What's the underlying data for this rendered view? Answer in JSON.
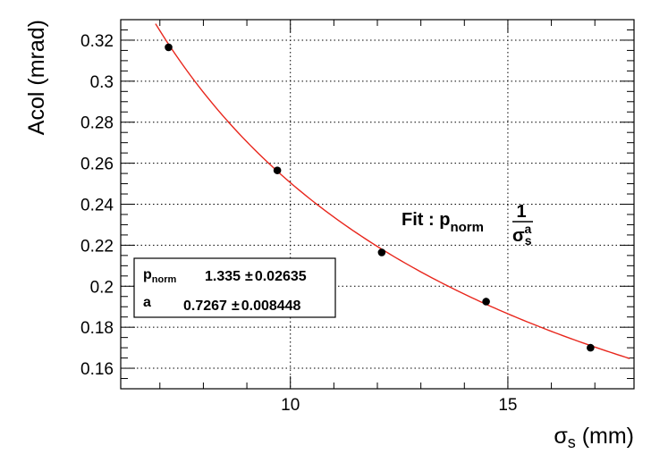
{
  "chart_data": {
    "type": "scatter",
    "xlabel": {
      "main": "σ",
      "sub": "s",
      "unit": " (mm)"
    },
    "ylabel": "Acol (mrad)",
    "xlim": [
      6.1,
      17.9
    ],
    "ylim": [
      0.15,
      0.33
    ],
    "x_ticks": [
      10,
      15
    ],
    "x_tick_labels": [
      "10",
      "15"
    ],
    "x_minor_step": 1,
    "y_ticks": [
      0.16,
      0.18,
      0.2,
      0.22,
      0.24,
      0.26,
      0.28,
      0.3,
      0.32
    ],
    "y_tick_labels": [
      "0.16",
      "0.18",
      "0.2",
      "0.22",
      "0.24",
      "0.26",
      "0.28",
      "0.3",
      "0.32"
    ],
    "y_minor_step": 0.005,
    "grid": true,
    "points": [
      {
        "x": 7.2,
        "y": 0.3165
      },
      {
        "x": 9.7,
        "y": 0.2565
      },
      {
        "x": 12.1,
        "y": 0.2165
      },
      {
        "x": 14.5,
        "y": 0.1925
      },
      {
        "x": 16.9,
        "y": 0.17
      }
    ],
    "marker_color": "#000000",
    "fit": {
      "color": "#e8261c",
      "p_norm": 1.335,
      "a": 0.7267,
      "x_from": 6.9,
      "x_to": 17.8
    },
    "fit_label": {
      "prefix": "Fit : p",
      "sub": "norm",
      "numerator": "1",
      "den_main": "σ",
      "den_sub": "s",
      "den_sup": "a"
    },
    "stats_box": {
      "rows": [
        {
          "name_main": "p",
          "name_sub": "norm",
          "value": "1.335",
          "pm": "±",
          "error": "0.02635"
        },
        {
          "name_main": "a",
          "name_sub": "",
          "value": "0.7267",
          "pm": "±",
          "error": "0.008448"
        }
      ]
    }
  }
}
